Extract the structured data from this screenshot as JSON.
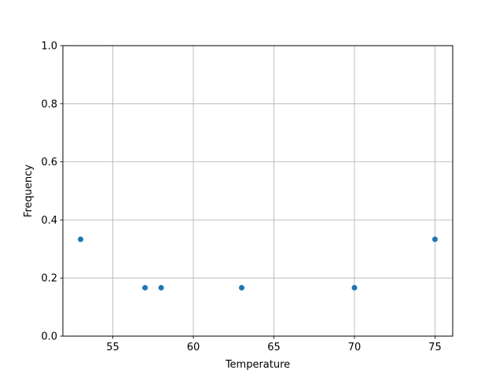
{
  "chart_data": {
    "type": "scatter",
    "title": "",
    "xlabel": "Temperature",
    "ylabel": "Frequency",
    "xlim": [
      51.9,
      76.1
    ],
    "ylim": [
      0.0,
      1.0
    ],
    "xticks": [
      "55",
      "60",
      "65",
      "70",
      "75"
    ],
    "xtick_values": [
      55,
      60,
      65,
      70,
      75
    ],
    "yticks": [
      "0.0",
      "0.2",
      "0.4",
      "0.6",
      "0.8",
      "1.0"
    ],
    "ytick_values": [
      0.0,
      0.2,
      0.4,
      0.6,
      0.8,
      1.0
    ],
    "grid": true,
    "marker_color": "#1f77b4",
    "grid_color": "#b0b0b0",
    "points": [
      {
        "x": 53,
        "y": 0.3333
      },
      {
        "x": 57,
        "y": 0.1667
      },
      {
        "x": 58,
        "y": 0.1667
      },
      {
        "x": 63,
        "y": 0.1667
      },
      {
        "x": 70,
        "y": 0.1667
      },
      {
        "x": 75,
        "y": 0.3333
      }
    ]
  }
}
